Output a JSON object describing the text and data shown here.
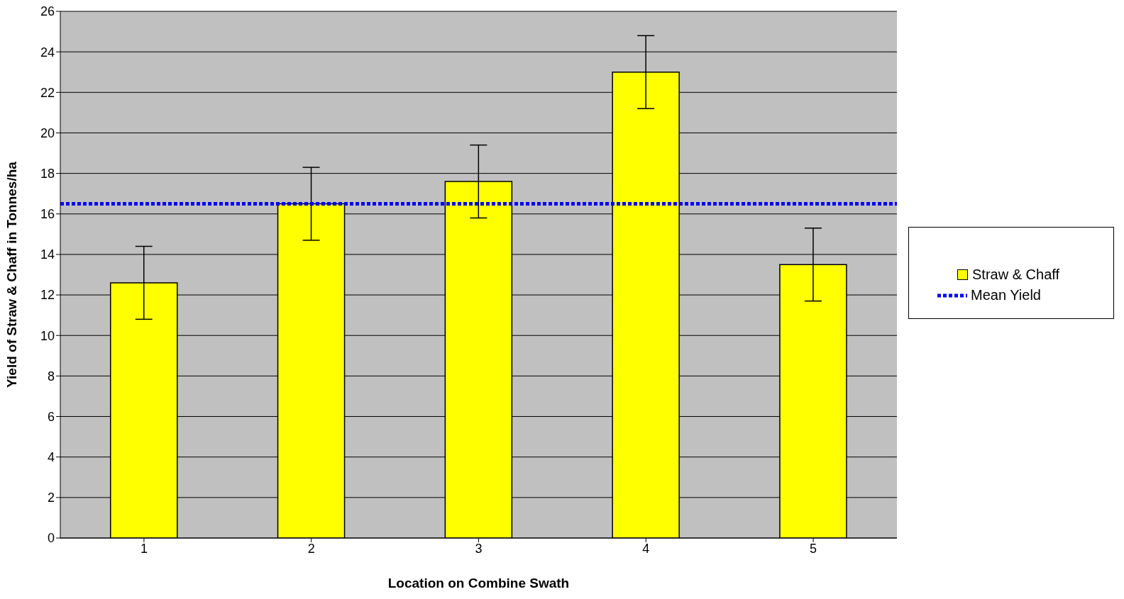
{
  "chart_data": {
    "type": "bar",
    "xlabel": "Location on Combine Swath",
    "ylabel": "Yield of Straw & Chaff in Tonnes/ha",
    "categories": [
      "1",
      "2",
      "3",
      "4",
      "5"
    ],
    "series": [
      {
        "name": "Straw & Chaff",
        "color": "#ffff00",
        "values": [
          12.6,
          16.5,
          17.6,
          23.0,
          13.5
        ],
        "errors": [
          1.8,
          1.8,
          1.8,
          1.8,
          1.8
        ]
      }
    ],
    "ref_lines": [
      {
        "axis": "y",
        "value": 16.5,
        "label": "Mean Yield",
        "color": "#0000ff",
        "line_style": "dotted"
      }
    ],
    "ylim": [
      0,
      26
    ],
    "yticks": [
      0,
      2,
      4,
      6,
      8,
      10,
      12,
      14,
      16,
      18,
      20,
      22,
      24,
      26
    ],
    "grid": "y",
    "legend": "right"
  }
}
